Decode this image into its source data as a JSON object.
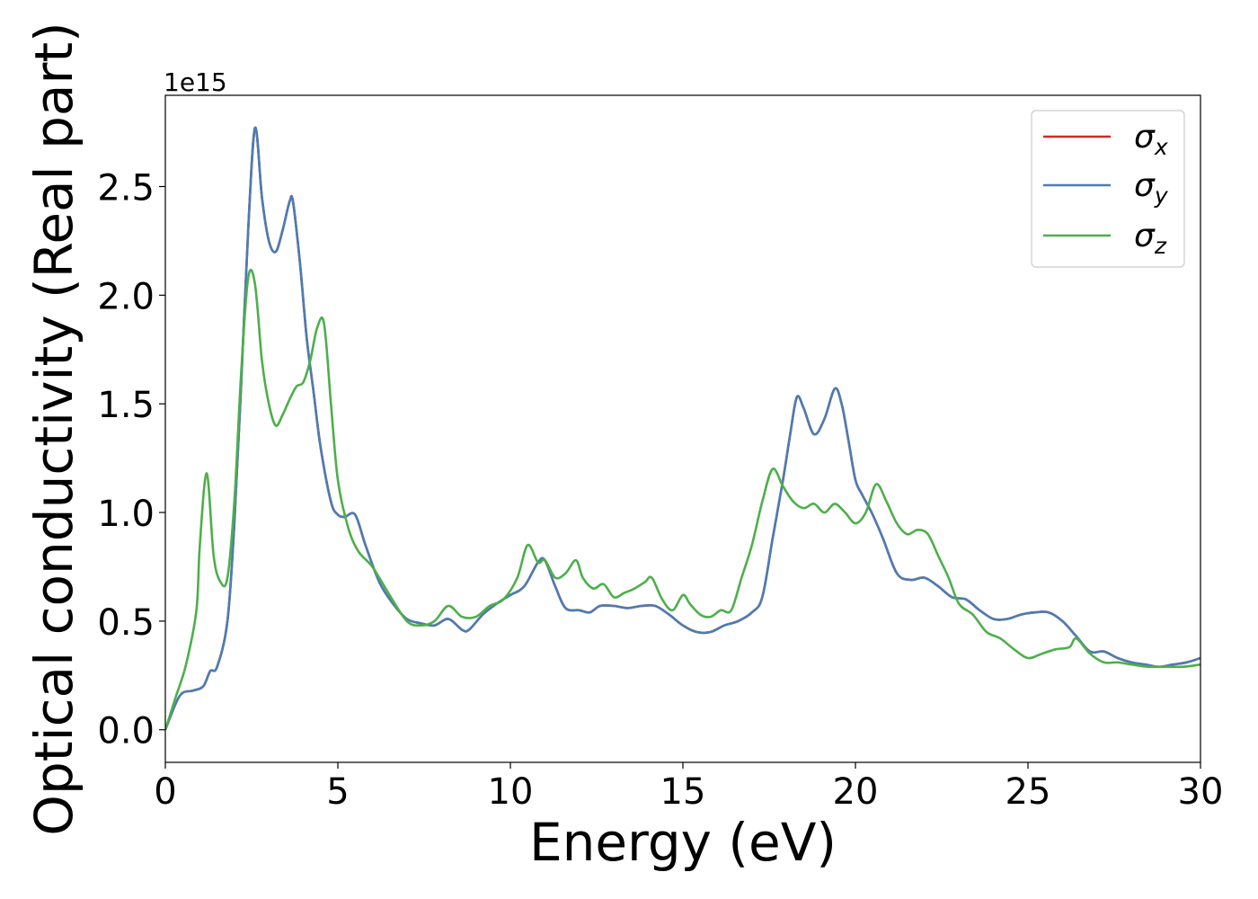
{
  "chart_data": {
    "type": "line",
    "title": "",
    "xlabel": "Energy (eV)",
    "ylabel": "Optical conductivity (Real part)",
    "y_offset_label": "1e15",
    "y_scale": 1000000000000000.0,
    "xlim": [
      0,
      30
    ],
    "ylim": [
      -0.15,
      2.92
    ],
    "x_ticks": [
      0,
      5,
      10,
      15,
      20,
      25,
      30
    ],
    "x_tick_labels": [
      "0",
      "5",
      "10",
      "15",
      "20",
      "25",
      "30"
    ],
    "y_ticks": [
      0.0,
      0.5,
      1.0,
      1.5,
      2.0,
      2.5
    ],
    "y_tick_labels": [
      "0.0",
      "0.5",
      "1.0",
      "1.5",
      "2.0",
      "2.5"
    ],
    "grid": false,
    "legend_position": "top-right",
    "series": [
      {
        "name": "σx",
        "symbol": "σ",
        "subscript": "x",
        "color": "#d62728",
        "x": [
          0,
          0.3,
          0.5,
          0.8,
          1.1,
          1.3,
          1.5,
          1.8,
          2.0,
          2.2,
          2.4,
          2.6,
          2.8,
          3.0,
          3.2,
          3.4,
          3.6,
          3.7,
          3.9,
          4.1,
          4.3,
          4.5,
          4.8,
          5.0,
          5.2,
          5.5,
          5.8,
          6.2,
          6.6,
          7.0,
          7.4,
          7.8,
          8.2,
          8.6,
          8.8,
          9.2,
          9.6,
          10.0,
          10.4,
          10.8,
          11.0,
          11.3,
          11.6,
          12.0,
          12.3,
          12.6,
          13.0,
          13.4,
          13.8,
          14.2,
          14.6,
          15.0,
          15.4,
          15.8,
          16.2,
          16.6,
          17.0,
          17.3,
          17.6,
          17.9,
          18.1,
          18.3,
          18.5,
          18.8,
          19.1,
          19.4,
          19.6,
          19.8,
          20.0,
          20.2,
          20.5,
          20.8,
          21.2,
          21.6,
          22.0,
          22.4,
          22.8,
          23.2,
          23.6,
          24.0,
          24.4,
          24.8,
          25.2,
          25.6,
          26.0,
          26.4,
          26.8,
          27.2,
          27.6,
          28.0,
          28.4,
          28.8,
          29.2,
          29.6,
          30.0
        ],
        "y": [
          0.0,
          0.12,
          0.17,
          0.18,
          0.2,
          0.27,
          0.29,
          0.5,
          0.95,
          1.6,
          2.3,
          2.77,
          2.45,
          2.25,
          2.2,
          2.3,
          2.43,
          2.43,
          2.15,
          1.8,
          1.55,
          1.3,
          1.05,
          0.99,
          0.98,
          0.99,
          0.85,
          0.68,
          0.58,
          0.51,
          0.49,
          0.48,
          0.51,
          0.46,
          0.46,
          0.53,
          0.58,
          0.62,
          0.66,
          0.77,
          0.78,
          0.66,
          0.56,
          0.55,
          0.54,
          0.57,
          0.57,
          0.56,
          0.57,
          0.57,
          0.53,
          0.48,
          0.45,
          0.45,
          0.48,
          0.5,
          0.54,
          0.61,
          0.88,
          1.15,
          1.35,
          1.53,
          1.48,
          1.36,
          1.43,
          1.57,
          1.5,
          1.33,
          1.15,
          1.08,
          0.99,
          0.88,
          0.72,
          0.69,
          0.7,
          0.66,
          0.61,
          0.6,
          0.55,
          0.51,
          0.51,
          0.53,
          0.54,
          0.54,
          0.5,
          0.43,
          0.36,
          0.36,
          0.33,
          0.31,
          0.3,
          0.29,
          0.3,
          0.31,
          0.33
        ]
      },
      {
        "name": "σy",
        "symbol": "σ",
        "subscript": "y",
        "color": "#4a7db3",
        "x": [
          0,
          0.3,
          0.5,
          0.8,
          1.1,
          1.3,
          1.5,
          1.8,
          2.0,
          2.2,
          2.4,
          2.6,
          2.8,
          3.0,
          3.2,
          3.4,
          3.6,
          3.7,
          3.9,
          4.1,
          4.3,
          4.5,
          4.8,
          5.0,
          5.2,
          5.5,
          5.8,
          6.2,
          6.6,
          7.0,
          7.4,
          7.8,
          8.2,
          8.6,
          8.8,
          9.2,
          9.6,
          10.0,
          10.4,
          10.8,
          11.0,
          11.3,
          11.6,
          12.0,
          12.3,
          12.6,
          13.0,
          13.4,
          13.8,
          14.2,
          14.6,
          15.0,
          15.4,
          15.8,
          16.2,
          16.6,
          17.0,
          17.3,
          17.6,
          17.9,
          18.1,
          18.3,
          18.5,
          18.8,
          19.1,
          19.4,
          19.6,
          19.8,
          20.0,
          20.2,
          20.5,
          20.8,
          21.2,
          21.6,
          22.0,
          22.4,
          22.8,
          23.2,
          23.6,
          24.0,
          24.4,
          24.8,
          25.2,
          25.6,
          26.0,
          26.4,
          26.8,
          27.2,
          27.6,
          28.0,
          28.4,
          28.8,
          29.2,
          29.6,
          30.0
        ],
        "y": [
          0.0,
          0.12,
          0.17,
          0.18,
          0.2,
          0.27,
          0.29,
          0.5,
          0.95,
          1.6,
          2.3,
          2.77,
          2.45,
          2.25,
          2.2,
          2.3,
          2.43,
          2.43,
          2.15,
          1.8,
          1.55,
          1.3,
          1.05,
          0.99,
          0.98,
          0.99,
          0.85,
          0.68,
          0.58,
          0.51,
          0.49,
          0.48,
          0.51,
          0.46,
          0.46,
          0.53,
          0.58,
          0.62,
          0.66,
          0.77,
          0.78,
          0.66,
          0.56,
          0.55,
          0.54,
          0.57,
          0.57,
          0.56,
          0.57,
          0.57,
          0.53,
          0.48,
          0.45,
          0.45,
          0.48,
          0.5,
          0.54,
          0.61,
          0.88,
          1.15,
          1.35,
          1.53,
          1.48,
          1.36,
          1.43,
          1.57,
          1.5,
          1.33,
          1.15,
          1.08,
          0.99,
          0.88,
          0.72,
          0.69,
          0.7,
          0.66,
          0.61,
          0.6,
          0.55,
          0.51,
          0.51,
          0.53,
          0.54,
          0.54,
          0.5,
          0.43,
          0.36,
          0.36,
          0.33,
          0.31,
          0.3,
          0.29,
          0.3,
          0.31,
          0.33
        ]
      },
      {
        "name": "σz",
        "symbol": "σ",
        "subscript": "z",
        "color": "#4daf4a",
        "x": [
          0,
          0.3,
          0.6,
          0.9,
          1.0,
          1.2,
          1.4,
          1.6,
          1.8,
          2.0,
          2.2,
          2.4,
          2.6,
          2.8,
          3.0,
          3.2,
          3.4,
          3.6,
          3.8,
          4.0,
          4.2,
          4.4,
          4.6,
          4.8,
          5.0,
          5.3,
          5.6,
          6.0,
          6.5,
          7.0,
          7.4,
          7.8,
          8.2,
          8.6,
          9.0,
          9.4,
          9.8,
          10.2,
          10.5,
          10.8,
          11.0,
          11.3,
          11.6,
          11.9,
          12.1,
          12.4,
          12.7,
          13.0,
          13.3,
          13.6,
          13.9,
          14.1,
          14.4,
          14.7,
          15.0,
          15.2,
          15.5,
          15.8,
          16.1,
          16.4,
          16.7,
          17.0,
          17.3,
          17.6,
          17.9,
          18.2,
          18.5,
          18.8,
          19.1,
          19.4,
          19.7,
          20.0,
          20.3,
          20.6,
          20.9,
          21.2,
          21.5,
          21.8,
          22.1,
          22.4,
          22.7,
          23.0,
          23.4,
          23.8,
          24.2,
          24.6,
          25.0,
          25.4,
          25.8,
          26.2,
          26.4,
          26.8,
          27.2,
          27.6,
          28.0,
          28.5,
          29.0,
          29.5,
          30.0
        ],
        "y": [
          0.0,
          0.15,
          0.3,
          0.55,
          0.85,
          1.18,
          0.8,
          0.68,
          0.7,
          1.05,
          1.65,
          2.08,
          2.05,
          1.7,
          1.5,
          1.4,
          1.45,
          1.52,
          1.58,
          1.6,
          1.7,
          1.85,
          1.87,
          1.5,
          1.15,
          0.93,
          0.82,
          0.75,
          0.62,
          0.5,
          0.48,
          0.5,
          0.57,
          0.52,
          0.52,
          0.57,
          0.6,
          0.7,
          0.85,
          0.77,
          0.78,
          0.7,
          0.72,
          0.78,
          0.7,
          0.65,
          0.67,
          0.61,
          0.63,
          0.65,
          0.68,
          0.7,
          0.6,
          0.55,
          0.62,
          0.58,
          0.53,
          0.52,
          0.55,
          0.55,
          0.7,
          0.85,
          1.05,
          1.2,
          1.12,
          1.05,
          1.02,
          1.04,
          1.0,
          1.04,
          1.0,
          0.95,
          1.0,
          1.13,
          1.05,
          0.95,
          0.9,
          0.92,
          0.9,
          0.8,
          0.7,
          0.58,
          0.53,
          0.45,
          0.42,
          0.37,
          0.33,
          0.35,
          0.37,
          0.38,
          0.42,
          0.35,
          0.31,
          0.31,
          0.3,
          0.29,
          0.29,
          0.29,
          0.3
        ]
      }
    ]
  }
}
